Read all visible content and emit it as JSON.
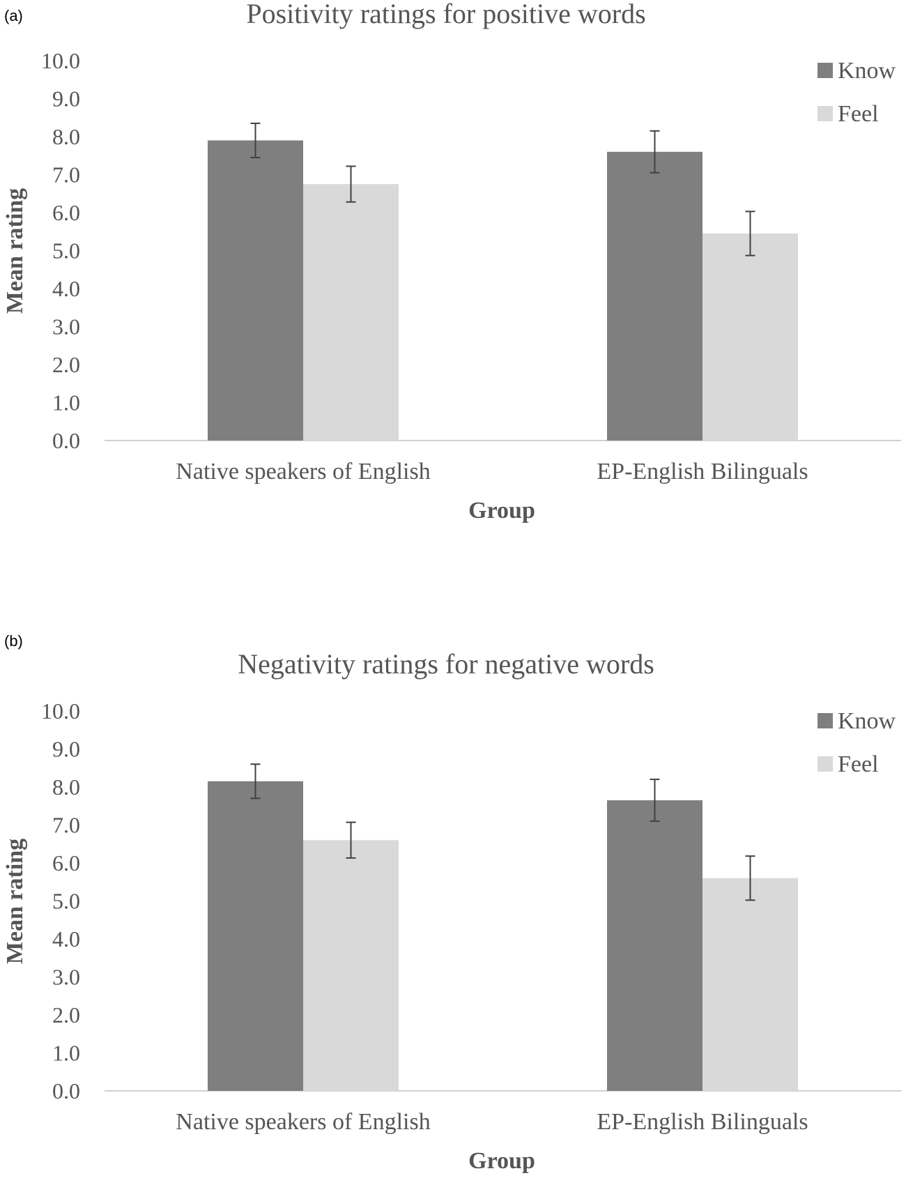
{
  "colors": {
    "know": "#7f7f7f",
    "feel": "#d9d9d9",
    "axis": "#d0d0d0",
    "error_bar": "#404040",
    "text": "#555555"
  },
  "chart_data": [
    {
      "panel_label": "(a)",
      "type": "bar",
      "title": "Positivity ratings for positive words",
      "xlabel": "Group",
      "ylabel": "Mean rating",
      "ylim": [
        0,
        10
      ],
      "yticks": [
        "0.0",
        "1.0",
        "2.0",
        "3.0",
        "4.0",
        "5.0",
        "6.0",
        "7.0",
        "8.0",
        "9.0",
        "10.0"
      ],
      "grid": false,
      "legend_position": "top-right",
      "categories": [
        "Native speakers of English",
        "EP-English Bilinguals"
      ],
      "series": [
        {
          "name": "Know",
          "color": "#7f7f7f",
          "values": [
            7.9,
            7.6
          ],
          "error": [
            0.45,
            0.55
          ]
        },
        {
          "name": "Feel",
          "color": "#d9d9d9",
          "values": [
            6.75,
            5.45
          ],
          "error": [
            0.47,
            0.58
          ]
        }
      ]
    },
    {
      "panel_label": "(b)",
      "type": "bar",
      "title": "Negativity ratings for negative words",
      "xlabel": "Group",
      "ylabel": "Mean rating",
      "ylim": [
        0,
        10
      ],
      "yticks": [
        "0.0",
        "1.0",
        "2.0",
        "3.0",
        "4.0",
        "5.0",
        "6.0",
        "7.0",
        "8.0",
        "9.0",
        "10.0"
      ],
      "grid": false,
      "legend_position": "top-right",
      "categories": [
        "Native speakers of English",
        "EP-English Bilinguals"
      ],
      "series": [
        {
          "name": "Know",
          "color": "#7f7f7f",
          "values": [
            8.15,
            7.65
          ],
          "error": [
            0.45,
            0.55
          ]
        },
        {
          "name": "Feel",
          "color": "#d9d9d9",
          "values": [
            6.6,
            5.6
          ],
          "error": [
            0.47,
            0.58
          ]
        }
      ]
    }
  ]
}
